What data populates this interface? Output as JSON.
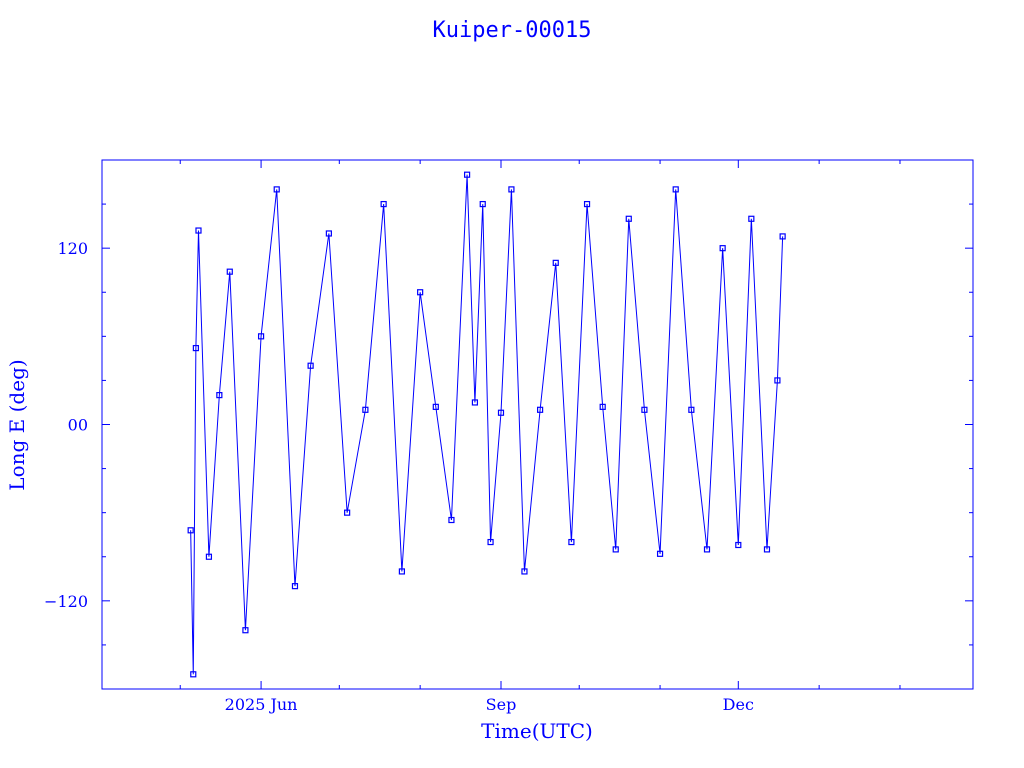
{
  "chart_data": {
    "type": "scatter",
    "title": "Kuiper-00015",
    "xlabel": "Time(UTC)",
    "ylabel": "Long E (deg)",
    "x_tick_labels": [
      "2025 Jun",
      "Sep",
      "Dec"
    ],
    "y_tick_labels": [
      "120",
      "00",
      "−120"
    ],
    "ylim": [
      -180,
      180
    ],
    "xlim": [
      "2025-04-01",
      "2026-03-01"
    ],
    "grid": false,
    "color": "#0000ff",
    "marker": "square",
    "line": "connected",
    "series": [
      {
        "x": [
          "2025-05-05",
          "2025-05-06",
          "2025-05-07",
          "2025-05-08",
          "2025-05-12",
          "2025-05-16",
          "2025-05-20",
          "2025-05-26",
          "2025-06-01",
          "2025-06-07",
          "2025-06-14",
          "2025-06-20",
          "2025-06-27",
          "2025-07-04",
          "2025-07-11",
          "2025-07-18",
          "2025-07-25",
          "2025-08-01",
          "2025-08-07",
          "2025-08-13",
          "2025-08-19",
          "2025-08-22",
          "2025-08-25",
          "2025-08-28",
          "2025-09-01",
          "2025-09-05",
          "2025-09-10",
          "2025-09-16",
          "2025-09-22",
          "2025-09-28",
          "2025-10-04",
          "2025-10-10",
          "2025-10-15",
          "2025-10-20",
          "2025-10-26",
          "2025-11-01",
          "2025-11-07",
          "2025-11-13",
          "2025-11-19",
          "2025-11-25",
          "2025-12-01",
          "2025-12-06",
          "2025-12-12",
          "2025-12-16",
          "2025-12-18"
        ],
        "y": [
          -72,
          -170,
          52,
          132,
          -90,
          20,
          104,
          -140,
          60,
          160,
          -110,
          40,
          130,
          -60,
          10,
          150,
          -100,
          90,
          12,
          -65,
          170,
          15,
          150,
          -80,
          8,
          160,
          -100,
          10,
          110,
          -80,
          150,
          12,
          -85,
          140,
          10,
          -88,
          160,
          10,
          -85,
          120,
          -82,
          140,
          -85,
          30,
          128
        ]
      }
    ]
  }
}
